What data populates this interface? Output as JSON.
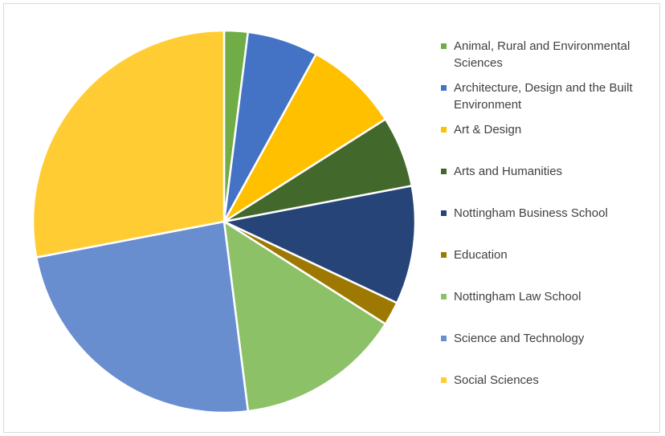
{
  "chart_data": {
    "type": "pie",
    "title": "",
    "start_angle_deg": 0,
    "slices": [
      {
        "label": "Animal, Rural and Environmental Sciences",
        "value": 2.0,
        "color": "#70AD47"
      },
      {
        "label": "Architecture, Design and the Built Environment",
        "value": 6.0,
        "color": "#4472C4"
      },
      {
        "label": "Art & Design",
        "value": 8.0,
        "color": "#FFC000"
      },
      {
        "label": "Arts and Humanities",
        "value": 6.0,
        "color": "#43682B"
      },
      {
        "label": "Nottingham Business School",
        "value": 10.0,
        "color": "#264478"
      },
      {
        "label": "Education",
        "value": 2.0,
        "color": "#9E7902"
      },
      {
        "label": "Nottingham Law School",
        "value": 14.0,
        "color": "#8CC168"
      },
      {
        "label": "Science and Technology",
        "value": 24.0,
        "color": "#698ED0"
      },
      {
        "label": "Social Sciences",
        "value": 28.0,
        "color": "#FFCD33"
      }
    ],
    "legend_position": "right",
    "slice_border_color": "#ffffff"
  }
}
